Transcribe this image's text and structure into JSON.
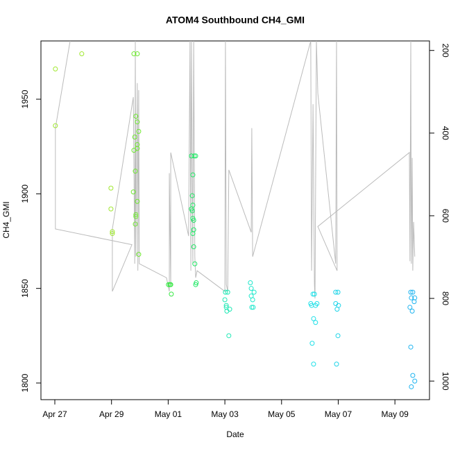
{
  "chart_data": {
    "type": "scatter",
    "title": "ATOM4 Southbound CH4_GMI",
    "x_label": "Date",
    "y_label": "CH4_GMI",
    "xlim": [
      -0.49,
      13.22
    ],
    "xticks": [
      {
        "value": 0,
        "label": "Apr 27"
      },
      {
        "value": 2,
        "label": "Apr 29"
      },
      {
        "value": 4,
        "label": "May 01"
      },
      {
        "value": 6,
        "label": "May 03"
      },
      {
        "value": 8,
        "label": "May 05"
      },
      {
        "value": 10,
        "label": "May 07"
      },
      {
        "value": 12,
        "label": "May 09"
      }
    ],
    "ylim": [
      1791.2,
      1980.8
    ],
    "yticks": [
      1800,
      1850,
      1900,
      1950
    ],
    "y2lim": [
      1045,
      177
    ],
    "y2ticks": [
      200,
      400,
      600,
      800,
      1000
    ],
    "series": [
      {
        "color": "#a0e830",
        "x": [
          0.02,
          0.02,
          0.95,
          1.98,
          1.98,
          2.03,
          2.03
        ],
        "values": [
          1966,
          1936,
          1974,
          1903,
          1892,
          1880,
          1879
        ]
      },
      {
        "color": "#6ee830",
        "x": [
          2.79,
          2.91,
          2.86,
          2.91,
          2.96,
          2.91,
          2.91,
          2.79,
          2.82,
          2.84,
          2.77,
          2.91,
          2.86,
          2.86,
          2.84,
          2.96
        ],
        "values": [
          1974,
          1974,
          1941,
          1938,
          1933,
          1926,
          1924,
          1923,
          1930,
          1912,
          1901,
          1896,
          1889,
          1888,
          1884,
          1868
        ]
      },
      {
        "color": "#33e840",
        "x": [
          4.01,
          4.06,
          4.09,
          4.11
        ],
        "values": [
          1852,
          1852,
          1852,
          1847
        ]
      },
      {
        "color": "#1ee864",
        "x": [
          4.82,
          4.92,
          4.97,
          4.87,
          4.85,
          4.87,
          4.82,
          4.85,
          4.87,
          4.9,
          4.9,
          4.87,
          4.9,
          4.94,
          4.97,
          4.99
        ],
        "values": [
          1920,
          1920,
          1920,
          1910,
          1899,
          1894,
          1892,
          1891,
          1887,
          1886,
          1881,
          1879,
          1872,
          1863,
          1852,
          1853
        ]
      },
      {
        "color": "#1ee8b4",
        "x": [
          6.02,
          6.1,
          6.0,
          6.05,
          6.05,
          6.07,
          6.17,
          6.14
        ],
        "values": [
          1848,
          1848,
          1844,
          1841,
          1840,
          1838,
          1839,
          1825
        ]
      },
      {
        "color": "#1ee8cc",
        "x": [
          6.9,
          6.93,
          6.93,
          6.98,
          7.03,
          6.95,
          7.0
        ],
        "values": [
          1853,
          1850,
          1846,
          1844,
          1848,
          1840,
          1840
        ]
      },
      {
        "color": "#1ee0e8",
        "x": [
          9.03,
          9.11,
          9.16,
          9.06,
          9.2,
          9.25,
          9.13,
          9.2,
          9.08,
          9.13
        ],
        "values": [
          1842,
          1847,
          1847,
          1841,
          1841,
          1842,
          1834,
          1832,
          1821,
          1810
        ]
      },
      {
        "color": "#1ed4e8",
        "x": [
          9.91,
          9.99,
          9.91,
          9.96,
          10.01,
          9.99,
          9.94
        ],
        "values": [
          1848,
          1848,
          1842,
          1839,
          1841,
          1825,
          1810
        ]
      },
      {
        "color": "#1eb4f0",
        "x": [
          12.56,
          12.63,
          12.58,
          12.7,
          12.68,
          12.53,
          12.61,
          12.56,
          12.63,
          12.7,
          12.58
        ],
        "values": [
          1848,
          1848,
          1845,
          1845,
          1843,
          1840,
          1838,
          1819,
          1804,
          1801,
          1798
        ]
      },
      {
        "type": "line",
        "axis": "y2",
        "color": "#bbbbbb",
        "x": [
          0.54,
          0.02,
          0.02,
          2.72,
          2.03,
          2.03,
          2.77,
          2.82,
          2.84,
          2.86,
          2.91,
          2.93,
          2.96,
          2.98,
          3.94,
          4.04,
          4.04,
          4.09,
          4.09,
          4.72,
          4.77,
          4.8,
          4.82,
          4.87,
          4.9,
          4.94,
          4.97,
          5.02,
          6.0,
          6.02,
          6.05,
          6.1,
          6.14,
          6.93,
          6.95,
          6.98,
          9.03,
          9.06,
          9.11,
          9.16,
          9.18,
          9.23,
          9.28,
          9.91,
          9.94,
          9.96,
          9.28,
          12.51,
          12.53,
          12.56,
          12.58,
          12.61,
          12.63,
          12.66,
          12.7
        ],
        "values": [
          177,
          388,
          632,
          670,
          783,
          632,
          313,
          716,
          177,
          699,
          279,
          733,
          296,
          716,
          750,
          783,
          497,
          766,
          447,
          649,
          177,
          733,
          177,
          716,
          177,
          699,
          750,
          733,
          783,
          177,
          766,
          783,
          489,
          640,
          388,
          699,
          177,
          733,
          330,
          766,
          800,
          177,
          304,
          716,
          177,
          733,
          626,
          447,
          710,
          177,
          716,
          460,
          733,
          615,
          699
        ]
      }
    ]
  }
}
